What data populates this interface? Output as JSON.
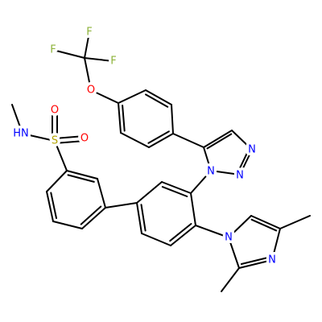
{
  "atoms": [
    "F",
    "F",
    "F",
    "O",
    "O",
    "O",
    "HN",
    "S",
    "N",
    "N",
    "N",
    "N",
    "N"
  ]
}
